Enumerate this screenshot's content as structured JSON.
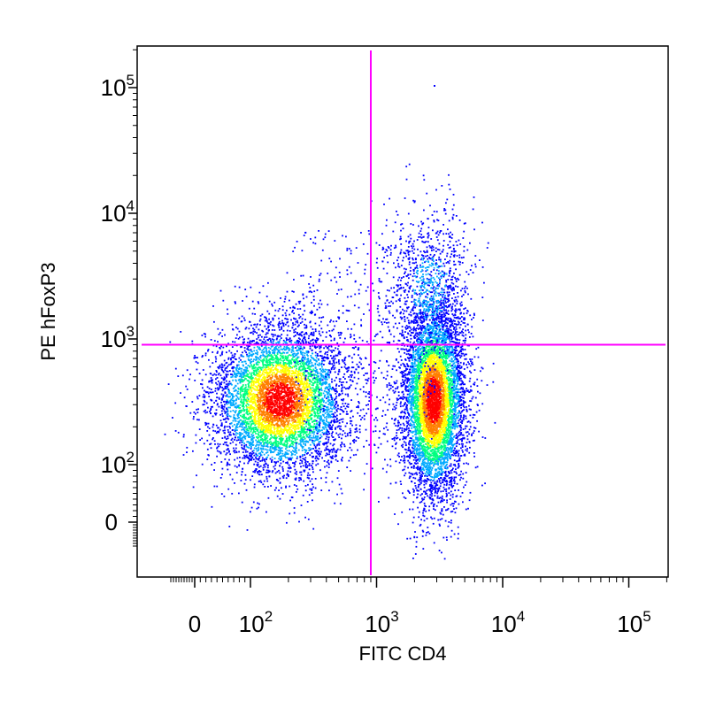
{
  "chart_data": {
    "type": "scatter",
    "subtype": "flow cytometry density dot plot (biexponential axes)",
    "xlabel": "FITC CD4",
    "ylabel": "PE hFoxP3",
    "x_ticks": [
      {
        "value": 0,
        "base": "0",
        "exp": ""
      },
      {
        "value": 100,
        "base": "10",
        "exp": "2"
      },
      {
        "value": 1000,
        "base": "10",
        "exp": "3"
      },
      {
        "value": 10000,
        "base": "10",
        "exp": "4"
      },
      {
        "value": 100000,
        "base": "10",
        "exp": "5"
      }
    ],
    "y_ticks": [
      {
        "value": 0,
        "base": "0",
        "exp": ""
      },
      {
        "value": 100,
        "base": "10",
        "exp": "2"
      },
      {
        "value": 1000,
        "base": "10",
        "exp": "3"
      },
      {
        "value": 10000,
        "base": "10",
        "exp": "4"
      },
      {
        "value": 100000,
        "base": "10",
        "exp": "5"
      }
    ],
    "gates": {
      "x": 900,
      "y": 900,
      "color": "#ff00ff"
    },
    "populations": [
      {
        "center_x": 170,
        "center_y": 330,
        "spread": "wide",
        "density": "high",
        "peak_color": "red"
      },
      {
        "center_x": 2800,
        "center_y": 330,
        "spread": "narrow-vertical",
        "density": "high",
        "peak_color": "red"
      },
      {
        "center_x": 2600,
        "center_y": 2500,
        "spread": "sparse",
        "density": "low",
        "peak_color": "blue"
      }
    ],
    "density_colors": [
      "#0000ff",
      "#00aaff",
      "#00ff80",
      "#ffff00",
      "#ff8000",
      "#ff0000"
    ],
    "grid": false
  }
}
